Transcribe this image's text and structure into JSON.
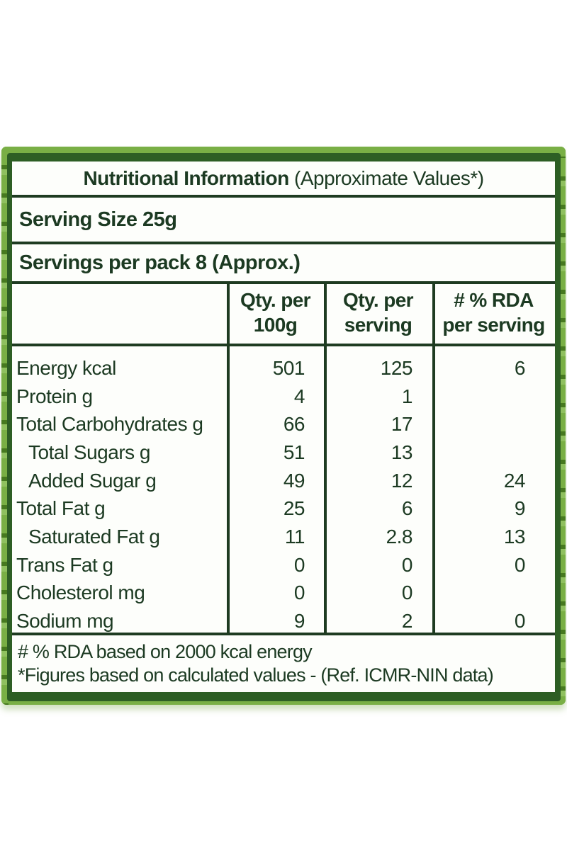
{
  "label": {
    "colors": {
      "frame_green": "#2d5e24",
      "bamboo_green": "#79af45",
      "bamboo_dark": "#46791f",
      "bamboo_highlight": "#8fc05f",
      "rule_and_text_green": "#1e3b21",
      "paper": "#fdfefb"
    },
    "title": {
      "bold": "Nutritional Information",
      "rest": " (Approximate Values*)"
    },
    "serving_size": "Serving Size 25g",
    "servings_per_pack": "Servings per pack 8 (Approx.)",
    "columns": [
      {
        "line1": "Qty. per",
        "line2": "100g"
      },
      {
        "line1": "Qty. per",
        "line2": "serving"
      },
      {
        "line1": "# % RDA",
        "line2": "per serving"
      }
    ],
    "rows": [
      {
        "name": "Energy kcal",
        "indent": false,
        "qty_per_100g": "501",
        "qty_per_serving": "125",
        "rda_per_serving": "6"
      },
      {
        "name": "Protein g",
        "indent": false,
        "qty_per_100g": "4",
        "qty_per_serving": "1",
        "rda_per_serving": ""
      },
      {
        "name": "Total Carbohydrates g",
        "indent": false,
        "qty_per_100g": "66",
        "qty_per_serving": "17",
        "rda_per_serving": ""
      },
      {
        "name": "Total Sugars g",
        "indent": true,
        "qty_per_100g": "51",
        "qty_per_serving": "13",
        "rda_per_serving": ""
      },
      {
        "name": "Added Sugar g",
        "indent": true,
        "qty_per_100g": "49",
        "qty_per_serving": "12",
        "rda_per_serving": "24"
      },
      {
        "name": "Total Fat g",
        "indent": false,
        "qty_per_100g": "25",
        "qty_per_serving": "6",
        "rda_per_serving": "9"
      },
      {
        "name": "Saturated Fat g",
        "indent": true,
        "qty_per_100g": "11",
        "qty_per_serving": "2.8",
        "rda_per_serving": "13"
      },
      {
        "name": "Trans Fat g",
        "indent": false,
        "qty_per_100g": "0",
        "qty_per_serving": "0",
        "rda_per_serving": "0"
      },
      {
        "name": "Cholesterol mg",
        "indent": false,
        "qty_per_100g": "0",
        "qty_per_serving": "0",
        "rda_per_serving": ""
      },
      {
        "name": "Sodium mg",
        "indent": false,
        "qty_per_100g": "9",
        "qty_per_serving": "2",
        "rda_per_serving": "0"
      }
    ],
    "footnotes": [
      "# % RDA based on 2000 kcal energy",
      "*Figures based on calculated values - (Ref. ICMR-NIN data)"
    ]
  }
}
